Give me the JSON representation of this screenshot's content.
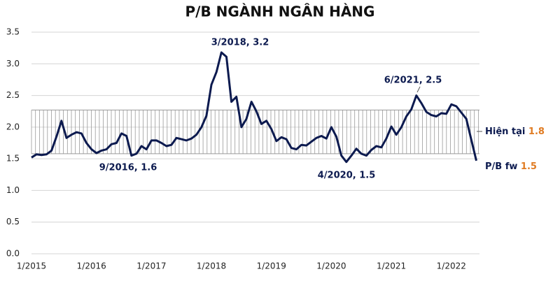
{
  "chart_data": {
    "type": "line",
    "title": "P/B NGÀNH NGÂN HÀNG",
    "categories": [
      "1/2015",
      null,
      null,
      null,
      null,
      null,
      null,
      null,
      null,
      null,
      null,
      null,
      "1/2016",
      null,
      null,
      null,
      null,
      null,
      null,
      null,
      null,
      null,
      null,
      null,
      "1/2017",
      null,
      null,
      null,
      null,
      null,
      null,
      null,
      null,
      null,
      null,
      null,
      "1/2018",
      null,
      null,
      null,
      null,
      null,
      null,
      null,
      null,
      null,
      null,
      null,
      "1/2019",
      null,
      null,
      null,
      null,
      null,
      null,
      null,
      null,
      null,
      null,
      null,
      "1/2020",
      null,
      null,
      null,
      null,
      null,
      null,
      null,
      null,
      null,
      null,
      null,
      "1/2021",
      null,
      null,
      null,
      null,
      null,
      null,
      null,
      null,
      null,
      null,
      null,
      "1/2022",
      null,
      null,
      null,
      null,
      null
    ],
    "series": [
      {
        "name": "P/B",
        "color": "#0c1a4f",
        "values": [
          1.52,
          1.57,
          1.56,
          1.57,
          1.63,
          1.85,
          2.1,
          1.83,
          1.88,
          1.92,
          1.9,
          1.75,
          1.65,
          1.59,
          1.63,
          1.65,
          1.73,
          1.75,
          1.9,
          1.86,
          1.55,
          1.58,
          1.7,
          1.65,
          1.79,
          1.79,
          1.75,
          1.7,
          1.72,
          1.83,
          1.81,
          1.79,
          1.82,
          1.88,
          2.0,
          2.18,
          2.67,
          2.87,
          3.18,
          3.11,
          2.4,
          2.48,
          2.0,
          2.13,
          2.4,
          2.25,
          2.05,
          2.1,
          1.97,
          1.78,
          1.84,
          1.81,
          1.67,
          1.65,
          1.72,
          1.71,
          1.77,
          1.83,
          1.86,
          1.82,
          2.0,
          1.85,
          1.55,
          1.45,
          1.55,
          1.66,
          1.58,
          1.55,
          1.64,
          1.7,
          1.68,
          1.82,
          2.01,
          1.88,
          2.0,
          2.17,
          2.28,
          2.5,
          2.38,
          2.24,
          2.19,
          2.17,
          2.22,
          2.21,
          2.36,
          2.33,
          2.23,
          2.13,
          1.8,
          1.47
        ]
      }
    ],
    "ylim": [
      0,
      3.5
    ],
    "yticks": [
      {
        "value": 0,
        "label": "0.0"
      },
      0.5,
      {
        "value": 1,
        "label": "1.0"
      },
      1.5,
      {
        "value": 2,
        "label": "2.0"
      },
      2.5,
      {
        "value": 3,
        "label": "3.0"
      },
      3.5
    ],
    "grid": true,
    "band": {
      "range": [
        1.58,
        2.27
      ],
      "color": "#9a9a9a"
    },
    "annotations": [
      "3/2018, 3.2",
      "9/2016, 1.6",
      "4/2020, 1.5",
      "6/2021, 2.5"
    ],
    "end_labels": [
      {
        "label": "Hiện tại",
        "value": 1.8
      },
      {
        "label": "P/B fw",
        "value": 1.5
      }
    ],
    "end_label_color": "#e07b22"
  }
}
